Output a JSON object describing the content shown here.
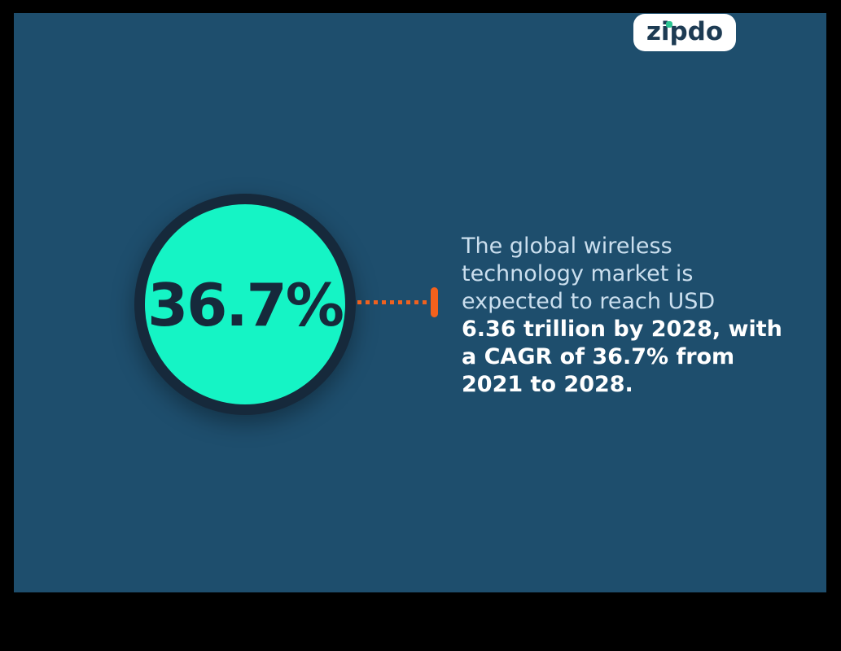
{
  "brand": {
    "label": "zipdo",
    "badge_background": "#FFFFFF",
    "text_color": "#1D3B53",
    "i_dot_color": "#2CC492"
  },
  "stat": {
    "value": "36.7%",
    "circle_fill": "#15F4C5",
    "circle_border": "#16293B"
  },
  "connector": {
    "style": "dotted-line-with-end-bar",
    "color": "#F4611C"
  },
  "description": {
    "lines": [
      {
        "text": "The global wireless",
        "bold": false
      },
      {
        "text": "technology market is",
        "bold": false
      },
      {
        "text": "expected to reach USD",
        "bold": false
      },
      {
        "text": "6.36 trillion by 2028, with",
        "bold": true
      },
      {
        "text": "a CAGR of 36.7% from",
        "bold": true
      },
      {
        "text": "2021 to 2028.",
        "bold": true
      }
    ]
  },
  "colors": {
    "outer_background": "#000000",
    "card_background": "#1E4E6D",
    "regular_text": "#CBDFEE",
    "bold_text": "#FFFFFF"
  }
}
